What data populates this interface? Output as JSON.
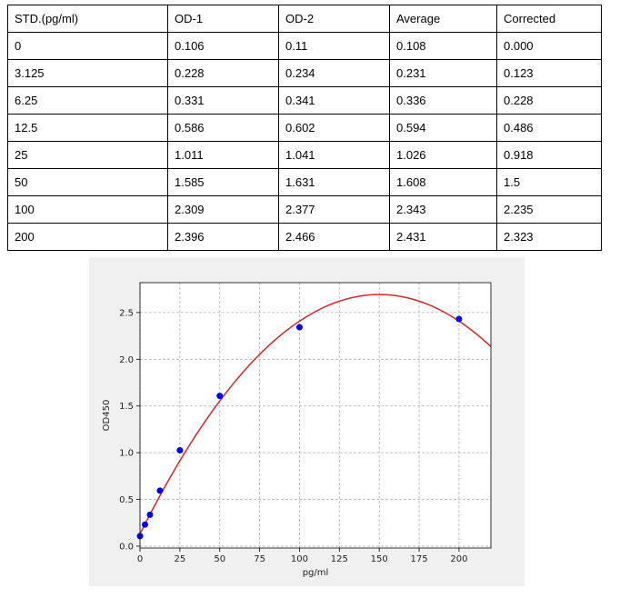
{
  "table": {
    "headers": [
      "STD.(pg/ml)",
      "OD-1",
      "OD-2",
      "Average",
      "Corrected"
    ],
    "rows": [
      [
        "0",
        "0.106",
        "0.11",
        "0.108",
        "0.000"
      ],
      [
        "3.125",
        "0.228",
        "0.234",
        "0.231",
        "0.123"
      ],
      [
        "6.25",
        "0.331",
        "0.341",
        "0.336",
        "0.228"
      ],
      [
        "12.5",
        "0.586",
        "0.602",
        "0.594",
        "0.486"
      ],
      [
        "25",
        "1.011",
        "1.041",
        "1.026",
        "0.918"
      ],
      [
        "50",
        "1.585",
        "1.631",
        "1.608",
        "1.5"
      ],
      [
        "100",
        "2.309",
        "2.377",
        "2.343",
        "2.235"
      ],
      [
        "200",
        "2.396",
        "2.466",
        "2.431",
        "2.323"
      ]
    ]
  },
  "chart_data": {
    "type": "scatter",
    "xlabel": "pg/ml",
    "ylabel": "OD450",
    "xlim": [
      0,
      220
    ],
    "ylim": [
      -0.02,
      2.82
    ],
    "xticks": [
      0,
      25,
      50,
      75,
      100,
      125,
      150,
      175,
      200
    ],
    "yticks": [
      0.0,
      0.5,
      1.0,
      1.5,
      2.0,
      2.5
    ],
    "grid": true,
    "points": {
      "x": [
        0,
        3.125,
        6.25,
        12.5,
        25,
        50,
        100,
        200
      ],
      "y": [
        0.108,
        0.231,
        0.336,
        0.594,
        1.026,
        1.608,
        2.343,
        2.431
      ]
    },
    "fit_curve": {
      "type": "polynomial",
      "coefficients": [
        0.13,
        0.03417,
        -0.0001139
      ],
      "x_range": [
        0,
        220
      ]
    },
    "colors": {
      "points": "#0000ee",
      "curve": "#d62728",
      "grid": "#b0b0b0",
      "background": "#f0f0f0"
    }
  }
}
